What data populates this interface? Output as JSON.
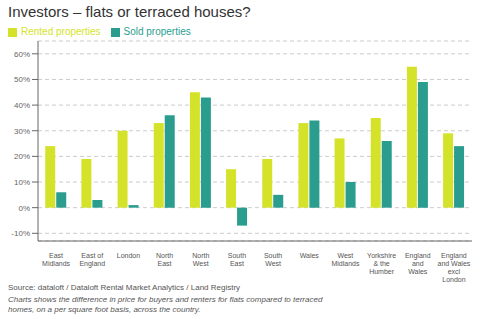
{
  "chart_data": {
    "type": "bar",
    "title": "Investors – flats or terraced houses?",
    "categories": [
      "East\nMidlands",
      "East of\nEngland",
      "London",
      "North\nEast",
      "North\nWest",
      "South\nEast",
      "South\nWest",
      "Wales",
      "West\nMidlands",
      "Yorkshire\n& the\nHumber",
      "England\nand\nWales",
      "England\nand Wales\nexcl\nLondon"
    ],
    "series": [
      {
        "name": "Rented properties",
        "color": "#d4e32a",
        "values": [
          24,
          19,
          30,
          33,
          45,
          15,
          19,
          33,
          27,
          35,
          55,
          29
        ]
      },
      {
        "name": "Sold properties",
        "color": "#2a9d8f",
        "values": [
          6,
          3,
          1,
          36,
          43,
          -7,
          5,
          34,
          10,
          26,
          49,
          24
        ]
      }
    ],
    "ylim": [
      -13,
      65
    ],
    "yticks": [
      {
        "value": -10,
        "label": "-10%"
      },
      {
        "value": 0,
        "label": "0%"
      },
      {
        "value": 10,
        "label": "10%"
      },
      {
        "value": 20,
        "label": "20%"
      },
      {
        "value": 30,
        "label": "30%"
      },
      {
        "value": 40,
        "label": "40%"
      },
      {
        "value": 50,
        "label": "50%"
      },
      {
        "value": 60,
        "label": "60%"
      }
    ],
    "grid": true,
    "legend": "top-left",
    "source": "Source: dataloft / Dataloft Rental Market Analytics / Land Registry",
    "note": "Charts shows the difference in price for buyers and renters for flats compared to terraced\nhomes, on a per square foot basis, across the country."
  }
}
